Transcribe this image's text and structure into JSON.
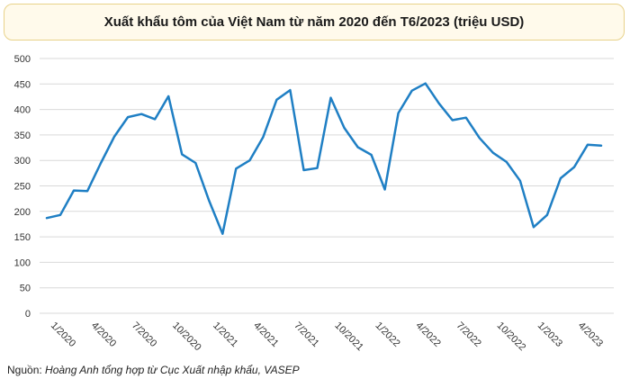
{
  "chart_data": {
    "type": "line",
    "title": "Xuất khẩu tôm của Việt Nam từ năm 2020 đến T6/2023 (triệu USD)",
    "ylim": [
      0,
      500
    ],
    "yticks": [
      0,
      50,
      100,
      150,
      200,
      250,
      300,
      350,
      400,
      450,
      500
    ],
    "grid": true,
    "color": "#1f7fc4",
    "x_labels": [
      "1/2020",
      "4/2020",
      "7/2020",
      "10/2020",
      "1/2021",
      "4/2021",
      "7/2021",
      "10/2021",
      "1/2022",
      "4/2022",
      "7/2022",
      "10/2022",
      "1/2023",
      "4/2023"
    ],
    "x": [
      "1/2020",
      "2/2020",
      "3/2020",
      "4/2020",
      "5/2020",
      "6/2020",
      "7/2020",
      "8/2020",
      "9/2020",
      "10/2020",
      "11/2020",
      "12/2020",
      "1/2021",
      "2/2021",
      "3/2021",
      "4/2021",
      "5/2021",
      "6/2021",
      "7/2021",
      "8/2021",
      "9/2021",
      "10/2021",
      "11/2021",
      "12/2021",
      "1/2022",
      "2/2022",
      "3/2022",
      "4/2022",
      "5/2022",
      "6/2022",
      "7/2022",
      "8/2022",
      "9/2022",
      "10/2022",
      "11/2022",
      "12/2022",
      "1/2023",
      "2/2023",
      "3/2023",
      "4/2023",
      "5/2023",
      "6/2023"
    ],
    "values": [
      187,
      193,
      241,
      240,
      295,
      347,
      385,
      391,
      381,
      426,
      312,
      295,
      221,
      156,
      284,
      300,
      346,
      419,
      438,
      281,
      285,
      423,
      364,
      326,
      311,
      243,
      393,
      437,
      451,
      412,
      379,
      384,
      344,
      315,
      297,
      260,
      169,
      193,
      265,
      287,
      331,
      329
    ]
  },
  "source": {
    "prefix": "Nguồn: ",
    "text": "Hoàng Anh tổng hợp từ Cục Xuất nhập khẩu, VASEP"
  }
}
